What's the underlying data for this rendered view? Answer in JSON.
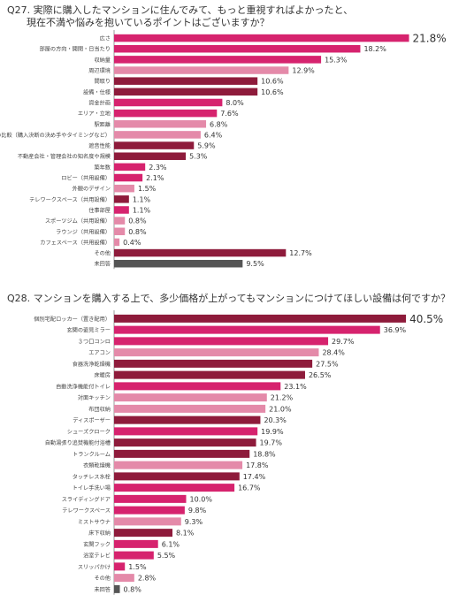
{
  "colors": {
    "magenta": "#d6236e",
    "pink": "#e48aa9",
    "maroon": "#8e1b3b",
    "gray": "#555555",
    "axis": "#999999"
  },
  "q27": {
    "title_line1": "Q27. 実際に購入したマンションに住んでみて、もっと重視すればよかったと、",
    "title_line2": "現在不満や悩みを抱いているポイントはございますか？"
  },
  "q28": {
    "title": "Q28. マンションを購入する上で、多少価格が上がってもマンションにつけてほしい設備は何ですか？"
  },
  "chart_data": [
    {
      "type": "bar",
      "orientation": "horizontal",
      "unit": "%",
      "xlim": [
        0,
        22
      ],
      "categories": [
        "広さ",
        "部屋の方向・開閉・日当たり",
        "収納量",
        "周辺環境",
        "間取り",
        "設備・仕様",
        "資金計画",
        "エリア・立地",
        "駅距離",
        "他者との比較（購入決断の決め手やタイミングなど）",
        "遮音性能",
        "不動産会社・管理会社の知名度や規模",
        "築年数",
        "ロビー（共用設備）",
        "外観のデザイン",
        "テレワークスペース（共用設備）",
        "住事部屋",
        "スポーツジム（共用設備）",
        "ラウンジ（共用設備）",
        "カフェスペース（共用設備）",
        "その他",
        "未回答"
      ],
      "values": [
        21.8,
        18.2,
        15.3,
        12.9,
        10.6,
        10.6,
        8.0,
        7.6,
        6.8,
        6.4,
        5.9,
        5.3,
        2.3,
        2.1,
        1.5,
        1.1,
        1.1,
        0.8,
        0.8,
        0.4,
        12.7,
        9.5
      ],
      "value_labels": [
        "21.8%",
        "18.2%",
        "15.3%",
        "12.9%",
        "10.6%",
        "10.6%",
        "8.0%",
        "7.6%",
        "6.8%",
        "6.4%",
        "5.9%",
        "5.3%",
        "2.3%",
        "2.1%",
        "1.5%",
        "1.1%",
        "1.1%",
        "0.8%",
        "0.8%",
        "0.4%",
        "12.7%",
        "9.5%"
      ],
      "bar_colors": [
        "magenta",
        "magenta",
        "magenta",
        "pink",
        "maroon",
        "maroon",
        "magenta",
        "magenta",
        "pink",
        "pink",
        "maroon",
        "maroon",
        "magenta",
        "magenta",
        "pink",
        "maroon",
        "magenta",
        "pink",
        "pink",
        "pink",
        "maroon",
        "gray"
      ]
    },
    {
      "type": "bar",
      "orientation": "horizontal",
      "unit": "%",
      "xlim": [
        0,
        41
      ],
      "categories": [
        "個別宅配ロッカー（置き配用）",
        "玄関の姿見ミラー",
        "３つ口コンロ",
        "エアコン",
        "食器洗浄乾燥機",
        "床暖房",
        "自動洗浄機能付トイレ",
        "対面キッチン",
        "布団収納",
        "ディスポーザー",
        "シューズクローク",
        "自動湯張り追焚機能付浴槽",
        "トランクルーム",
        "衣類乾燥機",
        "タッチレス水栓",
        "トイレ手洗い場",
        "スライディングドア",
        "テレワークスペース",
        "ミストサウナ",
        "床下収納",
        "玄関フック",
        "浴室テレビ",
        "スリッパかけ",
        "その他",
        "未回答"
      ],
      "values": [
        40.5,
        36.9,
        29.7,
        28.4,
        27.5,
        26.5,
        23.1,
        21.2,
        21.0,
        20.3,
        19.9,
        19.7,
        18.8,
        17.8,
        17.4,
        16.7,
        10.0,
        9.8,
        9.3,
        8.1,
        6.1,
        5.5,
        1.5,
        2.8,
        0.8
      ],
      "value_labels": [
        "40.5%",
        "36.9%",
        "29.7%",
        "28.4%",
        "27.5%",
        "26.5%",
        "23.1%",
        "21.2%",
        "21.0%",
        "20.3%",
        "19.9%",
        "19.7%",
        "18.8%",
        "17.8%",
        "17.4%",
        "16.7%",
        "10.0%",
        "9.8%",
        "9.3%",
        "8.1%",
        "6.1%",
        "5.5%",
        "1.5%",
        "2.8%",
        "0.8%"
      ],
      "bar_colors": [
        "maroon",
        "magenta",
        "magenta",
        "pink",
        "maroon",
        "maroon",
        "magenta",
        "pink",
        "pink",
        "maroon",
        "magenta",
        "maroon",
        "maroon",
        "pink",
        "maroon",
        "magenta",
        "magenta",
        "magenta",
        "pink",
        "maroon",
        "magenta",
        "magenta",
        "magenta",
        "pink",
        "gray"
      ]
    }
  ]
}
